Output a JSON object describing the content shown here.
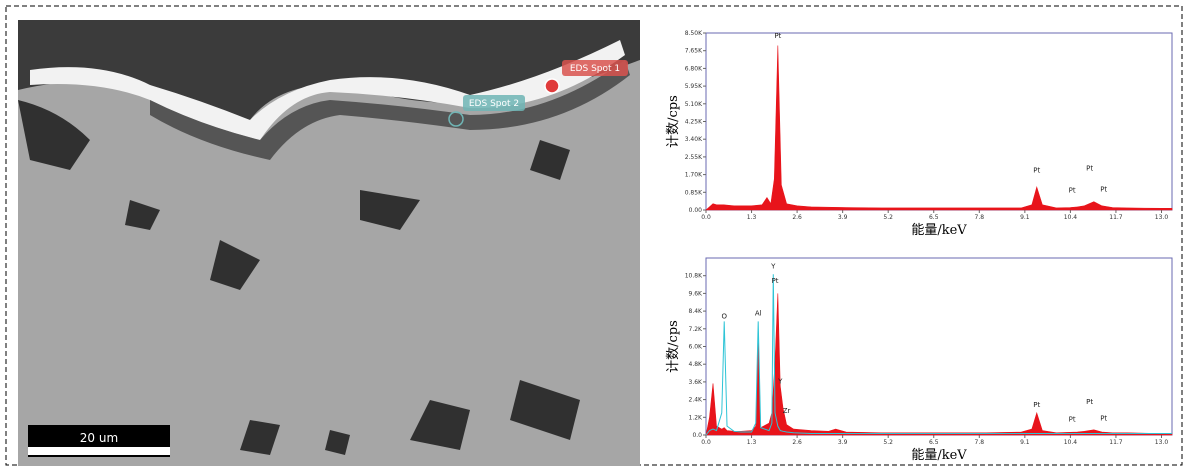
{
  "image": {
    "labels": [
      "EDS Spot 1",
      "EDS Spot 2",
      "20 um"
    ]
  },
  "chart_data": [
    {
      "type": "area",
      "xlabel": "能量/keV",
      "ylabel": "计数/cps",
      "xlim": [
        0,
        13.3
      ],
      "ylim": [
        0,
        8500
      ],
      "xticks": [
        {
          "value": 0,
          "label": "0.0"
        },
        1.3,
        2.6,
        3.9,
        5.2,
        6.5,
        7.8,
        9.1,
        10.4,
        11.7,
        {
          "value": 13,
          "label": "13.0"
        }
      ],
      "yticks": [
        {
          "value": 0,
          "label": "0.00"
        },
        {
          "value": 850,
          "label": "0.85K"
        },
        {
          "value": 1700,
          "label": "1.70K"
        },
        {
          "value": 2550,
          "label": "2.55K"
        },
        {
          "value": 3400,
          "label": "3.40K"
        },
        {
          "value": 4250,
          "label": "4.25K"
        },
        {
          "value": 5100,
          "label": "5.10K"
        },
        {
          "value": 5950,
          "label": "5.95K"
        },
        {
          "value": 6800,
          "label": "6.80K"
        },
        {
          "value": 7650,
          "label": "7.65K"
        },
        {
          "value": 8500,
          "label": "8.50K"
        }
      ],
      "x": [
        0,
        0.1,
        0.2,
        0.3,
        0.5,
        0.8,
        1.0,
        1.3,
        1.6,
        1.74,
        1.85,
        1.95,
        2.05,
        2.15,
        2.3,
        2.6,
        3,
        4,
        5,
        6,
        7,
        8,
        9,
        9.3,
        9.44,
        9.6,
        10,
        10.4,
        10.6,
        10.8,
        11.07,
        11.3,
        11.6,
        12,
        13,
        13.3
      ],
      "series": [
        {
          "color": "#e8141b",
          "style": "fill",
          "values": [
            0,
            150,
            300,
            250,
            250,
            200,
            200,
            200,
            250,
            600,
            300,
            1500,
            7900,
            1200,
            300,
            200,
            150,
            120,
            100,
            100,
            100,
            100,
            100,
            250,
            1100,
            250,
            100,
            120,
            150,
            200,
            400,
            200,
            120,
            100,
            80,
            80
          ]
        }
      ],
      "annotations": [
        {
          "text": "Pt",
          "x": 2.05,
          "y": 8250
        },
        {
          "text": "Pt",
          "x": 9.44,
          "y": 1800
        },
        {
          "text": "Pt",
          "x": 10.45,
          "y": 850
        },
        {
          "text": "Pt",
          "x": 10.95,
          "y": 1900
        },
        {
          "text": "Pt",
          "x": 11.35,
          "y": 900
        }
      ]
    },
    {
      "type": "area",
      "xlabel": "能量/keV",
      "ylabel": "计数/cps",
      "xlim": [
        0,
        13.3
      ],
      "ylim": [
        0,
        12000
      ],
      "xticks": [
        {
          "value": 0,
          "label": "0.0"
        },
        1.3,
        2.6,
        3.9,
        5.2,
        6.5,
        7.8,
        9.1,
        10.4,
        11.7,
        {
          "value": 13,
          "label": "13.0"
        }
      ],
      "yticks": [
        {
          "value": 0,
          "label": "0.0"
        },
        {
          "value": 1200,
          "label": "1.2K"
        },
        {
          "value": 2400,
          "label": "2.4K"
        },
        {
          "value": 3600,
          "label": "3.6K"
        },
        {
          "value": 4800,
          "label": "4.8K"
        },
        {
          "value": 6000,
          "label": "6.0K"
        },
        {
          "value": 7200,
          "label": "7.2K"
        },
        {
          "value": 8400,
          "label": "8.4K"
        },
        {
          "value": 9600,
          "label": "9.6K"
        },
        {
          "value": 10800,
          "label": "10.8K"
        }
      ],
      "x": [
        0,
        0.1,
        0.2,
        0.3,
        0.45,
        0.52,
        0.6,
        0.8,
        1.0,
        1.3,
        1.42,
        1.49,
        1.56,
        1.8,
        1.88,
        1.92,
        1.97,
        2.05,
        2.12,
        2.2,
        2.3,
        2.5,
        3,
        3.5,
        3.7,
        4,
        5,
        6,
        7,
        8,
        9,
        9.3,
        9.44,
        9.6,
        10,
        10.6,
        10.8,
        11.07,
        11.3,
        11.6,
        12,
        13,
        13.3
      ],
      "series": [
        {
          "color": "#e8141b",
          "style": "fill",
          "values": [
            0,
            1200,
            3500,
            600,
            400,
            500,
            300,
            250,
            250,
            300,
            600,
            6300,
            500,
            800,
            1500,
            3000,
            5000,
            9600,
            3300,
            1800,
            700,
            400,
            300,
            250,
            400,
            200,
            150,
            150,
            150,
            150,
            200,
            400,
            1500,
            300,
            150,
            200,
            250,
            350,
            200,
            150,
            150,
            100,
            100
          ]
        },
        {
          "color": "#2ec4d6",
          "style": "line",
          "values": [
            0,
            300,
            400,
            300,
            1500,
            7700,
            600,
            250,
            200,
            200,
            800,
            7700,
            500,
            300,
            800,
            10900,
            1500,
            600,
            300,
            250,
            200,
            150,
            100,
            100,
            100,
            100,
            100,
            100,
            100,
            100,
            100,
            100,
            100,
            100,
            100,
            100,
            100,
            100,
            100,
            100,
            100,
            100,
            100
          ]
        }
      ],
      "annotations": [
        {
          "text": "O",
          "x": 0.52,
          "y": 7900
        },
        {
          "text": "Al",
          "x": 1.49,
          "y": 8100
        },
        {
          "text": "Y",
          "x": 1.92,
          "y": 11300
        },
        {
          "text": "Pt",
          "x": 1.97,
          "y": 10300
        },
        {
          "text": "Y",
          "x": 2.12,
          "y": 3500
        },
        {
          "text": "Zr",
          "x": 2.3,
          "y": 1500
        },
        {
          "text": "Pt",
          "x": 9.44,
          "y": 1900
        },
        {
          "text": "Pt",
          "x": 10.45,
          "y": 900
        },
        {
          "text": "Pt",
          "x": 10.95,
          "y": 2100
        },
        {
          "text": "Pt",
          "x": 11.35,
          "y": 1000
        }
      ]
    }
  ]
}
